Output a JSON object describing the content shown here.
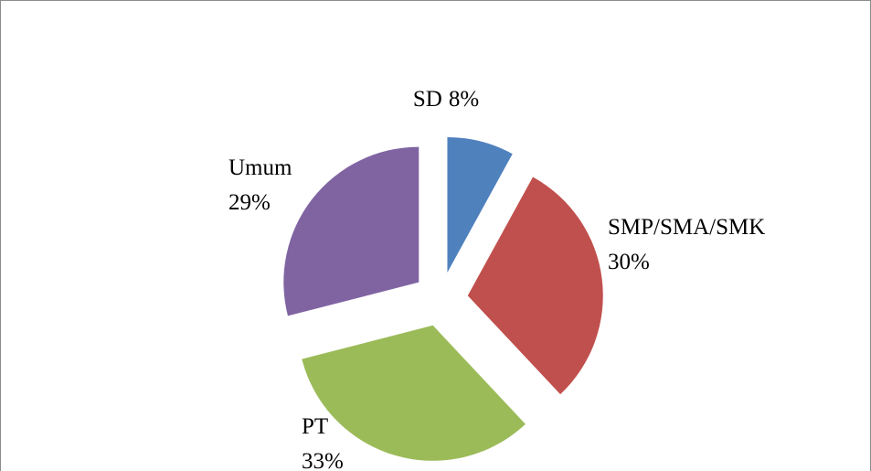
{
  "chart_data": {
    "type": "pie",
    "categories": [
      "SD",
      "SMP/SMA/SMK",
      "PT",
      "Umum"
    ],
    "values": [
      8,
      30,
      33,
      29
    ],
    "value_labels": [
      "8%",
      "30%",
      "33%",
      "29%"
    ],
    "colors": [
      "#4f81bd",
      "#c0504d",
      "#9bbb59",
      "#8064a2"
    ],
    "exploded": true
  }
}
